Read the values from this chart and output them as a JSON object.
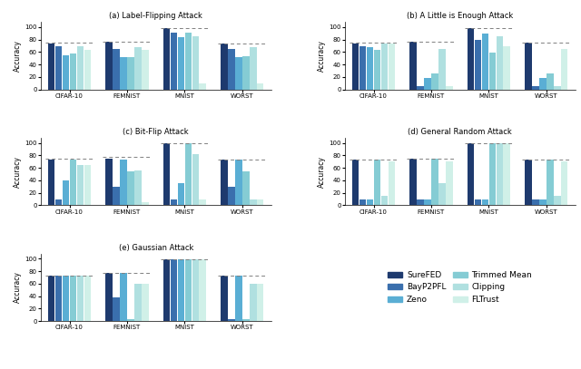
{
  "categories": [
    "CIFAR-10",
    "FEMNIST",
    "MNIST",
    "WORST"
  ],
  "colors": [
    "#1e3a6e",
    "#3a6fad",
    "#5aaed4",
    "#85ccd4",
    "#b0e0e0",
    "#d0f0e8"
  ],
  "subplot_titles": [
    "(a) Label-Flipping Attack",
    "(b) A Little is Enough Attack",
    "(c) Bit-Flip Attack",
    "(d) General Random Attack",
    "(e) Gaussian Attack"
  ],
  "attack_data": {
    "label_flipping": {
      "CIFAR-10": [
        73,
        70,
        55,
        57,
        70,
        64
      ],
      "FEMNIST": [
        77,
        65,
        52,
        52,
        68,
        64
      ],
      "MNIST": [
        98,
        91,
        84,
        91,
        85,
        10
      ],
      "WORST": [
        73,
        65,
        52,
        53,
        68,
        10
      ]
    },
    "little_enough": {
      "CIFAR-10": [
        74,
        70,
        68,
        64,
        73,
        73
      ],
      "FEMNIST": [
        77,
        5,
        19,
        25,
        65,
        5
      ],
      "MNIST": [
        99,
        80,
        90,
        59,
        86,
        70
      ],
      "WORST": [
        75,
        5,
        19,
        25,
        5,
        65
      ]
    },
    "bit_flip": {
      "CIFAR-10": [
        73,
        10,
        40,
        73,
        65,
        65
      ],
      "FEMNIST": [
        75,
        30,
        73,
        55,
        56,
        5
      ],
      "MNIST": [
        99,
        10,
        35,
        99,
        82,
        10
      ],
      "WORST": [
        73,
        30,
        73,
        55,
        10,
        10
      ]
    },
    "general_random": {
      "CIFAR-10": [
        73,
        10,
        10,
        73,
        15,
        70
      ],
      "FEMNIST": [
        75,
        10,
        10,
        75,
        35,
        70
      ],
      "MNIST": [
        99,
        10,
        10,
        99,
        99,
        99
      ],
      "WORST": [
        73,
        10,
        10,
        73,
        15,
        70
      ]
    },
    "gaussian": {
      "CIFAR-10": [
        73,
        73,
        73,
        73,
        73,
        73
      ],
      "FEMNIST": [
        77,
        38,
        77,
        3,
        60,
        60
      ],
      "MNIST": [
        99,
        99,
        99,
        99,
        99,
        99
      ],
      "WORST": [
        73,
        3,
        73,
        3,
        60,
        60
      ]
    }
  },
  "dashed": {
    "label_flipping": {
      "CIFAR-10": 75,
      "FEMNIST": 77,
      "MNIST": 98,
      "WORST": 73
    },
    "little_enough": {
      "CIFAR-10": 75,
      "FEMNIST": 77,
      "MNIST": 99,
      "WORST": 75
    },
    "bit_flip": {
      "CIFAR-10": 75,
      "FEMNIST": 77,
      "MNIST": 99,
      "WORST": 73
    },
    "general_random": {
      "CIFAR-10": 73,
      "FEMNIST": 75,
      "MNIST": 99,
      "WORST": 73
    },
    "gaussian": {
      "CIFAR-10": 73,
      "FEMNIST": 77,
      "MNIST": 99,
      "WORST": 73
    }
  },
  "legend_labels": [
    "SureFED",
    "BayP2PFL",
    "Zeno",
    "Trimmed Mean",
    "Clipping",
    "FLTrust"
  ],
  "yticks": [
    0,
    20,
    40,
    60,
    80,
    100
  ],
  "ylabel": "Accuracy"
}
